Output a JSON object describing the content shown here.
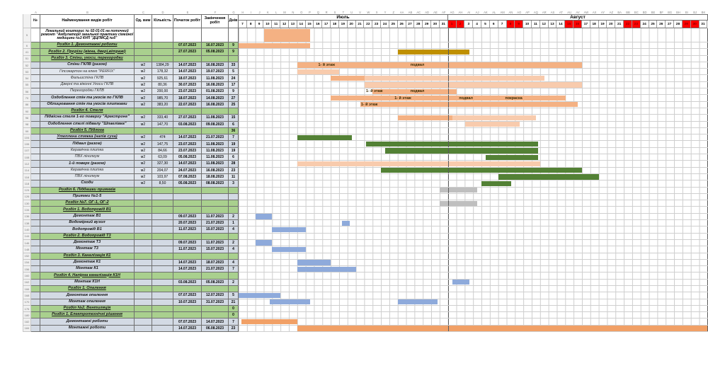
{
  "sheet": {
    "columns": [
      "№",
      "Найменування видів робіт",
      "Од. вим",
      "Кількість",
      "Початок робіт",
      "Закінчення робіт",
      "Днів"
    ],
    "months": [
      {
        "label": "Июль",
        "first_day": 7,
        "last_day": 31,
        "red_days": []
      },
      {
        "label": "Август",
        "first_day": 1,
        "last_day": 31,
        "red_days": [
          1,
          2,
          8,
          9,
          15,
          16,
          22,
          23,
          29,
          30
        ]
      }
    ],
    "colors": {
      "salmon": "#F4B183",
      "salmon_light": "#F8CBAD",
      "olive": "#BF9000",
      "green": "#538135",
      "gray": "#BFBFBF",
      "blue": "#8EAADB",
      "orange": "#F1A066",
      "red_day_bg": "#FF0000",
      "red_day_text": "#8B0000",
      "section_bg": "#A9D08E",
      "task_bg": "#D3DAE4",
      "sub_bg": "#E1E6ED",
      "bar_label": "#3B2B00"
    },
    "rows": [
      {
        "num": "5",
        "type": "title",
        "name": "Локальний кошторис  № 02-01-01 на поточний ремонт \"Амбулаторії загальної практики сімейної медицини №3 КНП \"ДЦПМСД №6\"",
        "bars": [
          {
            "s": 3,
            "l": 5.5,
            "c": "salmon"
          }
        ]
      },
      {
        "num": "6",
        "type": "section",
        "name": "Розділ 1. Демонтажні роботи",
        "start": "07.07.2023",
        "end": "16.07.2023",
        "days": "9",
        "bars": [
          {
            "s": 0,
            "l": 8.5,
            "c": "salmon"
          }
        ]
      },
      {
        "num": "41",
        "type": "section",
        "name": "Розділ 2. Прорізи (вікна, двері,вітражі)",
        "start": "27.07.2023",
        "end": "05.08.2023",
        "days": "9",
        "bars": [
          {
            "s": 19,
            "l": 8.5,
            "c": "olive"
          }
        ]
      },
      {
        "num": "51",
        "type": "section",
        "name": "Розділ 3. Стіни, укоси, перегородки"
      },
      {
        "num": "52",
        "type": "task",
        "name": "Стіни ГКЛВ (разом)",
        "unit": "м2",
        "qty": "1384,29",
        "start": "14.07.2023",
        "end": "16.08.2023",
        "days": "33",
        "bars": [
          {
            "s": 7,
            "l": 34,
            "c": "salmon"
          }
        ],
        "labels": [
          {
            "t": "1- й этаж",
            "d": 9.5
          },
          {
            "t": "подвал",
            "d": 20.5
          }
        ]
      },
      {
        "num": "53",
        "type": "sub",
        "name": "Гіпсокартон на клею \"PERFIX\"",
        "unit": "м2",
        "qty": "178,32",
        "start": "14.07.2023",
        "end": "19.07.2023",
        "days": "5",
        "bars": [
          {
            "s": 7,
            "l": 5,
            "c": "salmon_light"
          }
        ]
      },
      {
        "num": "54",
        "type": "sub",
        "name": "Фальшстіна ГКЛВ",
        "unit": "м2",
        "qty": "925,61",
        "start": "18.07.2023",
        "end": "11.08.2023",
        "days": "24",
        "bars": [
          {
            "s": 11,
            "l": 4,
            "c": "salmon"
          },
          {
            "s": 15,
            "l": 21.5,
            "c": "salmon_light"
          }
        ]
      },
      {
        "num": "55",
        "type": "sub",
        "name": "Дверні та віконні Укоси ГКЛВ",
        "unit": "м2",
        "qty": "80,36",
        "start": "30.07.2023",
        "end": "16.08.2023",
        "days": "17",
        "bars": [
          {
            "s": 15,
            "l": 26,
            "c": "salmon_light"
          }
        ]
      },
      {
        "num": "56",
        "type": "sub",
        "name": "Перегородки ГКЛВ",
        "unit": "м2",
        "qty": "200,00",
        "start": "23.07.2023",
        "end": "01.08.2023",
        "days": "9",
        "bars": [
          {
            "s": 16,
            "l": 10,
            "c": "salmon"
          }
        ],
        "labels": [
          {
            "t": "1- й этаж",
            "d": 15.2
          },
          {
            "t": "подвал",
            "d": 20.5
          }
        ]
      },
      {
        "num": "70",
        "type": "task",
        "name": "Оздоблення стін та укосів по ГКЛВ",
        "unit": "м2",
        "qty": "985,70",
        "start": "18.07.2023",
        "end": "14.08.2023",
        "days": "27",
        "bars": [
          {
            "s": 11,
            "l": 28,
            "c": "salmon"
          }
        ],
        "labels": [
          {
            "t": "1- й этаж",
            "d": 18.6
          },
          {
            "t": "подвал",
            "d": 26.3
          },
          {
            "t": "покраска",
            "d": 31.8
          }
        ]
      },
      {
        "num": "86",
        "type": "task",
        "name": "Облицювання стін та укосів плитками",
        "unit": "м2",
        "qty": "383,20",
        "start": "22.07.2023",
        "end": "16.08.2023",
        "days": "25",
        "bars": [
          {
            "s": 14.5,
            "l": 26,
            "c": "salmon"
          }
        ],
        "labels": [
          {
            "t": "1- й этаж",
            "d": 14.6
          }
        ]
      },
      {
        "num": "90",
        "type": "section",
        "name": "Розділ 4. Стеля"
      },
      {
        "num": "96",
        "type": "task",
        "name": "Підвісна стеля 1-го поверху \"Армстронг\"",
        "unit": "м2",
        "qty": "333,40",
        "start": "27.07.2023",
        "end": "11.08.2023",
        "days": "15",
        "bars": [
          {
            "s": 19,
            "l": 6.5,
            "c": "salmon"
          },
          {
            "s": 25.5,
            "l": 10,
            "c": "salmon_light"
          }
        ]
      },
      {
        "num": "98",
        "type": "task",
        "name": "Оздоблення стелі підвалу \"Шпаклівка\"",
        "unit": "м2",
        "qty": "147,70",
        "start": "03.08.2023",
        "end": "09.08.2023",
        "days": "6",
        "bars": [
          {
            "s": 27,
            "l": 6.5,
            "c": "salmon_light"
          }
        ]
      },
      {
        "num": "99",
        "type": "section",
        "name": "Розділ 5. Підлога",
        "days": "36"
      },
      {
        "num": "104",
        "type": "task_u",
        "name": "Утеплена  стяжка (напів суха)",
        "unit": "м2",
        "qty": "474",
        "start": "14.07.2023",
        "end": "21.07.2023",
        "days": "7",
        "bars": [
          {
            "s": 7,
            "l": 6.5,
            "c": "green"
          }
        ]
      },
      {
        "num": "106",
        "type": "task",
        "name": "Підвал (разом)",
        "unit": "м2",
        "qty": "147,75",
        "start": "23.07.2023",
        "end": "11.08.2023",
        "days": "19",
        "bars": [
          {
            "s": 15.2,
            "l": 20.5,
            "c": "green"
          }
        ]
      },
      {
        "num": "107",
        "type": "sub",
        "name": "Керамічна плитка",
        "unit": "м2",
        "qty": "84,66",
        "start": "23.07.2023",
        "end": "11.08.2023",
        "days": "19",
        "bars": [
          {
            "s": 17.5,
            "l": 18.2,
            "c": "green"
          }
        ]
      },
      {
        "num": "108",
        "type": "sub",
        "name": "ПВХ лінолеум",
        "unit": "м2",
        "qty": "63,09",
        "start": "05.08.2023",
        "end": "11.08.2023",
        "days": "6",
        "bars": [
          {
            "s": 29.5,
            "l": 6.2,
            "c": "green"
          }
        ]
      },
      {
        "num": "112",
        "type": "task",
        "name": "1-й поверх (разом)",
        "unit": "м2",
        "qty": "327,30",
        "start": "14.07.2023",
        "end": "11.08.2023",
        "days": "28",
        "bars": [
          {
            "s": 7,
            "l": 29,
            "c": "salmon_light"
          }
        ]
      },
      {
        "num": "114",
        "type": "sub",
        "name": "Керамічна плитка",
        "unit": "м2",
        "qty": "204,07",
        "start": "24.07.2023",
        "end": "16.08.2023",
        "days": "23",
        "bars": [
          {
            "s": 17,
            "l": 24,
            "c": "green"
          }
        ]
      },
      {
        "num": "116",
        "type": "sub",
        "name": "ПВХ лінолеум",
        "unit": "м2",
        "qty": "103,97",
        "start": "07.08.2023",
        "end": "18.08.2023",
        "days": "11",
        "bars": [
          {
            "s": 31,
            "l": 12,
            "c": "green"
          }
        ]
      },
      {
        "num": "118",
        "type": "task",
        "name": "Сходи",
        "unit": "м2",
        "qty": "8,50",
        "start": "05.08.2023",
        "end": "08.08.2023",
        "days": "3",
        "bars": [
          {
            "s": 29,
            "l": 3.5,
            "c": "green"
          }
        ]
      },
      {
        "num": "124",
        "type": "section",
        "name": "Розділ 6. Піддашки приямків",
        "bars": [
          {
            "s": 24,
            "l": 4.5,
            "c": "gray"
          }
        ]
      },
      {
        "num": "126",
        "type": "task",
        "name": "Приямки №1-5"
      },
      {
        "num": "130",
        "type": "section",
        "name": "Розділ №7.  ОГ-1, ОГ-2",
        "bars": [
          {
            "s": 24,
            "l": 4.5,
            "c": "gray"
          }
        ]
      },
      {
        "num": "134",
        "type": "section",
        "name": "Розділ 1. Водопровід В1"
      },
      {
        "num": "136",
        "type": "task",
        "name": "Демонтаж В1",
        "start": "09.07.2023",
        "end": "11.07.2023",
        "days": "2",
        "bars": [
          {
            "s": 2,
            "l": 2,
            "c": "blue"
          }
        ]
      },
      {
        "num": "138",
        "type": "task",
        "name": "Водомірний вузол",
        "start": "20.07.2023",
        "end": "21.07.2023",
        "days": "1",
        "bars": [
          {
            "s": 12.3,
            "l": 1,
            "c": "blue"
          }
        ]
      },
      {
        "num": "140",
        "type": "task",
        "name": "Водопровід В1",
        "start": "11.07.2023",
        "end": "15.07.2023",
        "days": "4",
        "bars": [
          {
            "s": 4,
            "l": 4,
            "c": "blue"
          }
        ]
      },
      {
        "num": "144",
        "type": "section",
        "name": "Розділ 2. Водопровід Т3"
      },
      {
        "num": "146",
        "type": "task",
        "name": "Демонтаж Т3",
        "start": "09.07.2023",
        "end": "11.07.2023",
        "days": "2",
        "bars": [
          {
            "s": 2,
            "l": 2,
            "c": "blue"
          }
        ]
      },
      {
        "num": "148",
        "type": "task",
        "name": "Монтаж Т3",
        "start": "11.07.2023",
        "end": "15.07.2023",
        "days": "4",
        "bars": [
          {
            "s": 4,
            "l": 4,
            "c": "blue"
          }
        ]
      },
      {
        "num": "152",
        "type": "section",
        "name": "Розділ 3. Каналізація К1"
      },
      {
        "num": "154",
        "type": "task",
        "name": "Демонтаж К1",
        "start": "14.07.2023",
        "end": "18.07.2023",
        "days": "4",
        "bars": [
          {
            "s": 7,
            "l": 4,
            "c": "blue"
          }
        ]
      },
      {
        "num": "156",
        "type": "task",
        "name": "Монтаж К1",
        "start": "14.07.2023",
        "end": "21.07.2023",
        "days": "7",
        "bars": [
          {
            "s": 7,
            "l": 7,
            "c": "blue"
          }
        ]
      },
      {
        "num": "160",
        "type": "section",
        "name": "Розділ 4. Напірна каналізація К1Н"
      },
      {
        "num": "162",
        "type": "task",
        "name": "Монтаж К1Н",
        "start": "03.08.2023",
        "end": "05.08.2023",
        "days": "2",
        "bars": [
          {
            "s": 25.5,
            "l": 2,
            "c": "blue"
          }
        ]
      },
      {
        "num": "166",
        "type": "section",
        "name": "Розділ 1. Опалення"
      },
      {
        "num": "168",
        "type": "task",
        "name": "Демонтаж опалення",
        "start": "07.07.2023",
        "end": "12.07.2023",
        "days": "5",
        "bars": [
          {
            "s": 0,
            "l": 5,
            "c": "blue"
          }
        ]
      },
      {
        "num": "170",
        "type": "task",
        "name": "Монтаж опалення",
        "start": "10.07.2023",
        "end": "31.07.2023",
        "days": "21",
        "bars": [
          {
            "s": 3.7,
            "l": 4.8,
            "c": "blue"
          },
          {
            "s": 19,
            "l": 4.7,
            "c": "blue"
          }
        ]
      },
      {
        "num": "176",
        "type": "section",
        "name": "Розділ №2.  Вентиляція",
        "days": "0"
      },
      {
        "num": "180",
        "type": "section",
        "name": "Розділ 1. Електротехнічні рішення",
        "days": "0"
      },
      {
        "num": "182",
        "type": "task",
        "name": "Демонтажні роботи",
        "start": "07.07.2023",
        "end": "14.07.2023",
        "days": "7",
        "bars": [
          {
            "s": 0.3,
            "l": 6.7,
            "c": "orange"
          }
        ]
      },
      {
        "num": "184",
        "type": "task",
        "name": "Монтажні роботи",
        "start": "14.07.2023",
        "end": "06.08.2023",
        "days": "23",
        "bars": [
          {
            "s": 7,
            "l": 49,
            "c": "orange"
          }
        ]
      }
    ]
  }
}
